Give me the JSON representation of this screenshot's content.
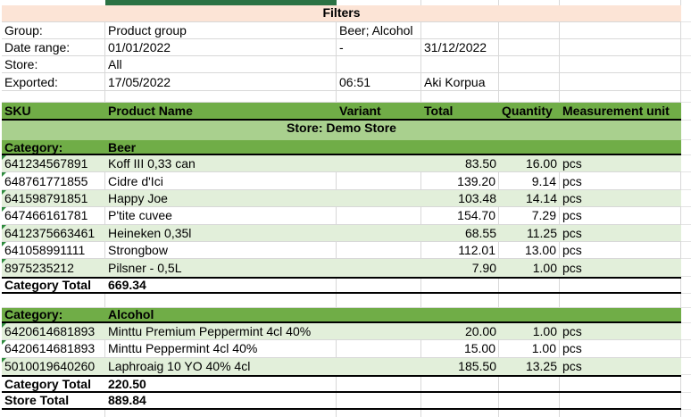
{
  "sheet": {
    "filters": {
      "title": "Filters",
      "rows": [
        {
          "label": "Group:",
          "value": "Product group",
          "extra1": "Beer; Alcohol",
          "extra2": ""
        },
        {
          "label": "Date range:",
          "value": "01/01/2022",
          "extra1": "-",
          "extra2": "31/12/2022"
        },
        {
          "label": "Store:",
          "value": "All",
          "extra1": "",
          "extra2": ""
        },
        {
          "label": "Exported:",
          "value": "17/05/2022",
          "extra1": "06:51",
          "extra2": "Aki Korpua"
        }
      ]
    },
    "columns": [
      "SKU",
      "Product Name",
      "Variant",
      "Total",
      "Quantity",
      "Measurement unit"
    ],
    "store_banner": "Store: Demo Store",
    "category_row_label": "Category:",
    "sections": [
      {
        "name": "Beer",
        "rows": [
          {
            "sku": "641234567891",
            "name": "Koff III 0,33 can",
            "variant": "",
            "total": "83.50",
            "quantity": "16.00",
            "unit": "pcs"
          },
          {
            "sku": "648761771855",
            "name": "Cidre d'Ici",
            "variant": "",
            "total": "139.20",
            "quantity": "9.14",
            "unit": "pcs"
          },
          {
            "sku": "641598791851",
            "name": "Happy Joe",
            "variant": "",
            "total": "103.48",
            "quantity": "14.14",
            "unit": "pcs"
          },
          {
            "sku": "647466161781",
            "name": "P'tite cuvee",
            "variant": "",
            "total": "154.70",
            "quantity": "7.29",
            "unit": "pcs"
          },
          {
            "sku": "6412375663461",
            "name": "Heineken 0,35l",
            "variant": "",
            "total": "68.55",
            "quantity": "11.25",
            "unit": "pcs"
          },
          {
            "sku": "641058991111",
            "name": "Strongbow",
            "variant": "",
            "total": "112.01",
            "quantity": "13.00",
            "unit": "pcs"
          },
          {
            "sku": "8975235212",
            "name": "Pilsner - 0,5L",
            "variant": "",
            "total": "7.90",
            "quantity": "1.00",
            "unit": "pcs"
          }
        ],
        "total_label": "Category Total",
        "total_value": "669.34"
      },
      {
        "name": "Alcohol",
        "rows": [
          {
            "sku": "6420614681893",
            "name": "Minttu Premium Peppermint 4cl 40%",
            "variant": "",
            "total": "20.00",
            "quantity": "1.00",
            "unit": "pcs"
          },
          {
            "sku": "6420614681893",
            "name": "Minttu Peppermint 4cl 40%",
            "variant": "",
            "total": "15.00",
            "quantity": "1.00",
            "unit": "pcs"
          },
          {
            "sku": "5010019640260",
            "name": "Laphroaig 10 YO 40% 4cl",
            "variant": "",
            "total": "185.50",
            "quantity": "13.25",
            "unit": "pcs"
          }
        ],
        "total_label": "Category Total",
        "total_value": "220.50"
      }
    ],
    "store_total_label": "Store Total",
    "store_total_value": "889.84",
    "colors": {
      "header_green": "#70AD47",
      "banner_green": "#A9D08E",
      "row_tint_green": "#E2EFDA",
      "filters_banner_tan": "#FCE4D6",
      "top_bar_dark_green": "#2B7244",
      "gridline_gray": "#D8D8D8",
      "error_triangle_green": "#2E8B3D",
      "black_border": "#000000"
    }
  }
}
